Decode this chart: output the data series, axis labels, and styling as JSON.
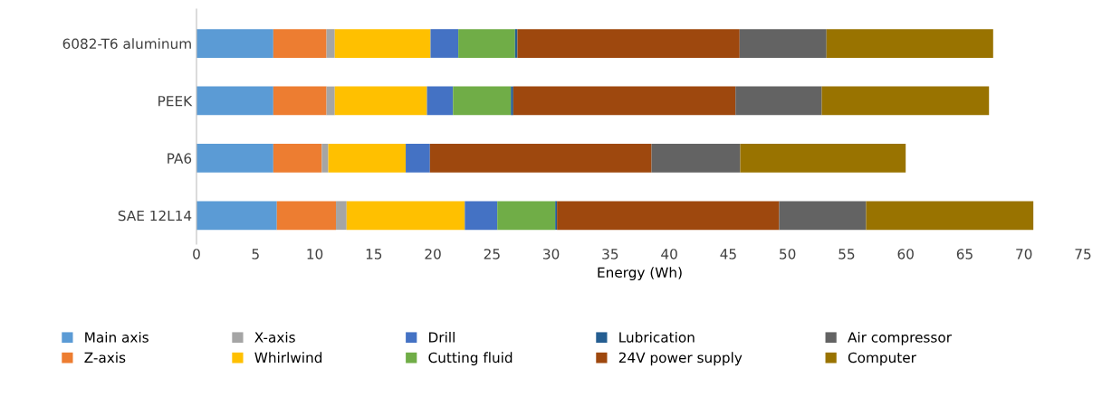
{
  "chart_data": {
    "type": "bar",
    "orientation": "horizontal",
    "stacked": true,
    "xlabel": "Energy (Wh)",
    "categories": [
      "6082-T6 aluminum",
      "PEEK",
      "PA6",
      "SAE 12L14"
    ],
    "xlim": [
      0,
      75
    ],
    "xticks": [
      0,
      5,
      10,
      15,
      20,
      25,
      30,
      35,
      40,
      45,
      50,
      55,
      60,
      65,
      70,
      75
    ],
    "grid": false,
    "legend": "bottom",
    "series": [
      {
        "name": "Main axis",
        "color": "#5b9bd5",
        "values": [
          6.5,
          6.5,
          6.5,
          6.8
        ]
      },
      {
        "name": "Z-axis",
        "color": "#ed7d31",
        "values": [
          4.5,
          4.5,
          4.1,
          5.0
        ]
      },
      {
        "name": "X-axis",
        "color": "#a5a5a5",
        "values": [
          0.7,
          0.7,
          0.55,
          0.9
        ]
      },
      {
        "name": "Whirlwind",
        "color": "#ffc000",
        "values": [
          8.1,
          7.8,
          6.55,
          10.0
        ]
      },
      {
        "name": "Drill",
        "color": "#4472c4",
        "values": [
          2.35,
          2.2,
          2.05,
          2.75
        ]
      },
      {
        "name": "Cutting fluid",
        "color": "#70ad47",
        "values": [
          4.8,
          4.9,
          0,
          4.9
        ]
      },
      {
        "name": "Lubrication",
        "color": "#255e91",
        "values": [
          0.2,
          0.2,
          0,
          0.15
        ]
      },
      {
        "name": "24V power supply",
        "color": "#9e480e",
        "values": [
          18.8,
          18.8,
          18.75,
          18.8
        ]
      },
      {
        "name": "Air compressor",
        "color": "#636363",
        "values": [
          7.35,
          7.3,
          7.5,
          7.35
        ]
      },
      {
        "name": "Computer",
        "color": "#997300",
        "values": [
          14.1,
          14.15,
          14.0,
          14.15
        ]
      }
    ]
  }
}
